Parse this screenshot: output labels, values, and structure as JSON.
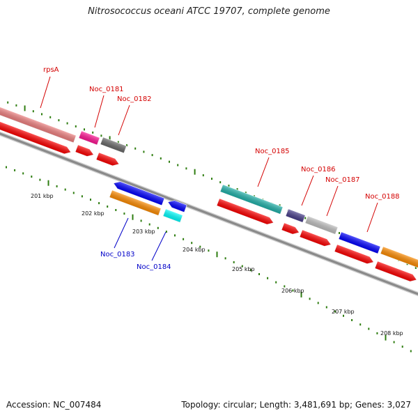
{
  "title": "Nitrosococcus oceani ATCC 19707, complete genome",
  "accession": "Accession: NC_007484",
  "summary": "Topology: circular; Length: 3,481,691 bp; Genes: 3,027",
  "colors": {
    "backbone": "#8a8a8a",
    "tick": "#2e7d10",
    "cds_strand": "#ff0000",
    "label_forward": "#d40000",
    "label_reverse": "#0000c8",
    "kbp_label": "#111111"
  },
  "kbp_labels": [
    "201 kbp",
    "202 kbp",
    "203 kbp",
    "204 kbp",
    "205 kbp",
    "206 kbp",
    "207 kbp",
    "208 kbp"
  ],
  "genes": [
    {
      "label": "rpsA",
      "strand": "forward",
      "color": "#f08080"
    },
    {
      "label": "Noc_0181",
      "strand": "forward",
      "color": "#ff1493"
    },
    {
      "label": "Noc_0182",
      "strand": "forward",
      "color": "#696969"
    },
    {
      "label": "Noc_0183",
      "strand": "reverse",
      "color": "#ff8c00"
    },
    {
      "label": "Noc_0184",
      "strand": "reverse",
      "color": "#00ffff"
    },
    {
      "label": "Noc_0185",
      "strand": "forward",
      "color": "#20b2aa"
    },
    {
      "label": "Noc_0186",
      "strand": "forward",
      "color": "#483d8b"
    },
    {
      "label": "Noc_0187",
      "strand": "forward",
      "color": "#c0c0c0"
    },
    {
      "label": "Noc_0188",
      "strand": "forward",
      "color": "#0000ff"
    }
  ],
  "unlabeled_features": [
    {
      "name": "reverse-blue-cds",
      "color": "#0000ff"
    },
    {
      "name": "reverse-blue-cds-small",
      "color": "#0000ff"
    },
    {
      "name": "forward-orange-cds-edge",
      "color": "#ff8c00"
    }
  ]
}
